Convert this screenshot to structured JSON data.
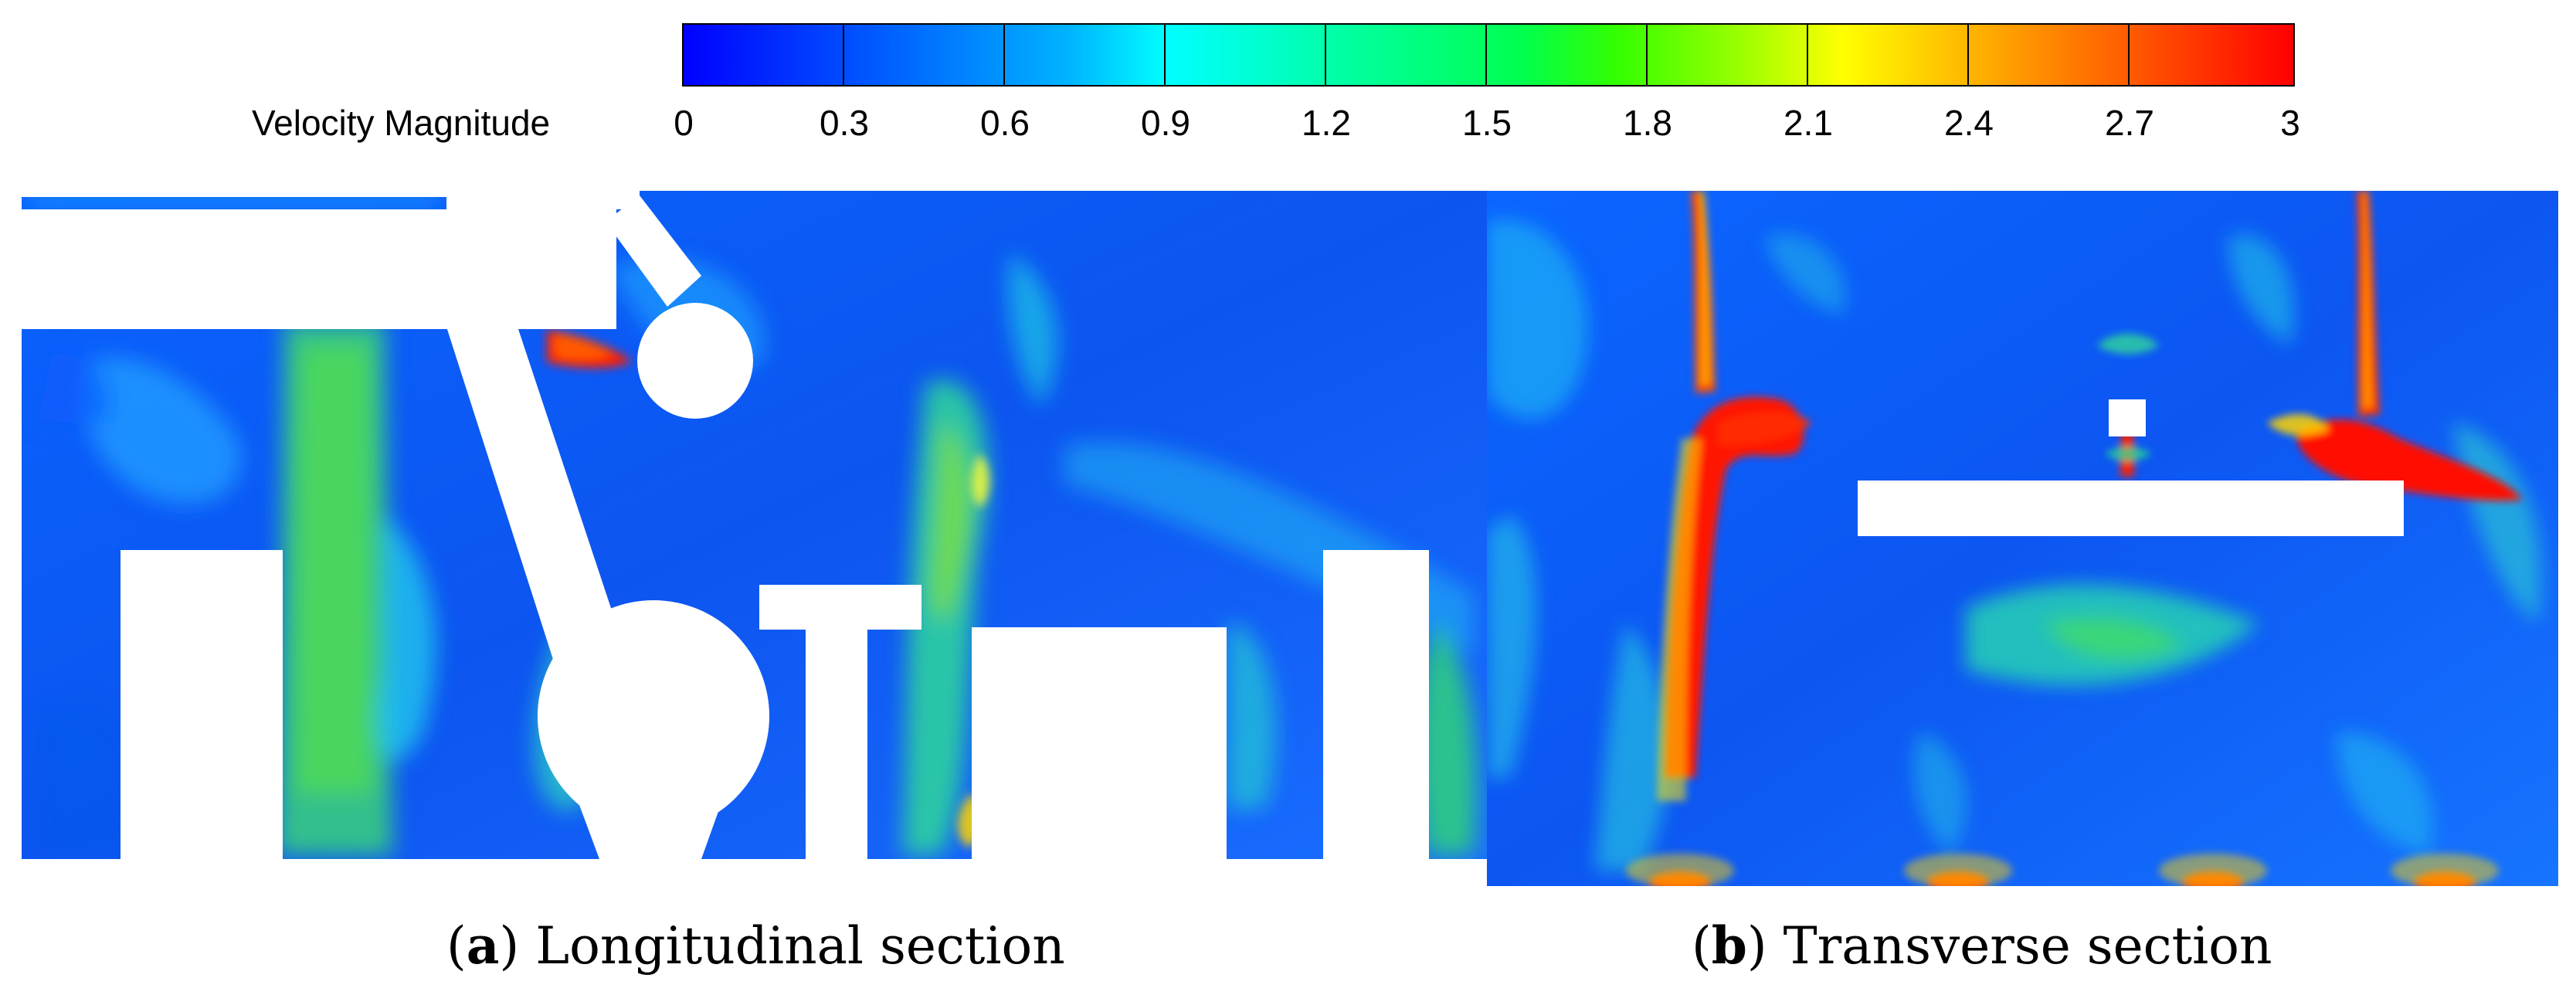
{
  "colorbar": {
    "title": "Velocity Magnitude",
    "ticks": [
      "0",
      "0.3",
      "0.6",
      "0.9",
      "1.2",
      "1.5",
      "1.8",
      "2.1",
      "2.4",
      "2.7",
      "3"
    ],
    "range": [
      0,
      3
    ],
    "colors": [
      "#0000ff",
      "#00ffff",
      "#00ff00",
      "#ffff00",
      "#ff0000"
    ]
  },
  "panels": [
    {
      "letter": "a",
      "label": "Longitudinal section"
    },
    {
      "letter": "b",
      "label": "Transverse section"
    }
  ]
}
